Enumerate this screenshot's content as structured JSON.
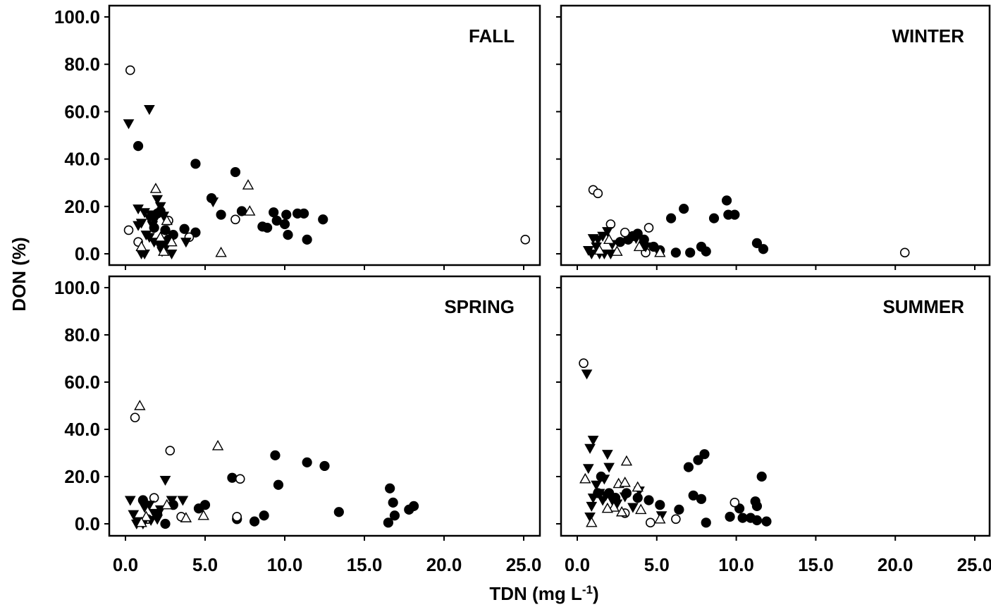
{
  "chart_data": [
    {
      "type": "scatter",
      "title": "FALL",
      "xlim": [
        0,
        25
      ],
      "ylim": [
        0,
        100
      ],
      "series": [
        {
          "marker": "filled-circle",
          "points": [
            [
              0.8,
              45.5
            ],
            [
              2.0,
              17
            ],
            [
              2.2,
              18
            ],
            [
              2.5,
              10
            ],
            [
              2.7,
              6
            ],
            [
              3.0,
              8
            ],
            [
              3.7,
              10.5
            ],
            [
              4.4,
              9
            ],
            [
              4.4,
              38
            ],
            [
              5.4,
              23.5
            ],
            [
              6.0,
              16.5
            ],
            [
              6.9,
              34.5
            ],
            [
              7.3,
              18
            ],
            [
              8.6,
              11.5
            ],
            [
              8.9,
              11
            ],
            [
              9.3,
              17.5
            ],
            [
              9.5,
              14
            ],
            [
              10.0,
              12.5
            ],
            [
              10.1,
              16.5
            ],
            [
              10.2,
              8
            ],
            [
              10.8,
              17
            ],
            [
              11.2,
              17
            ],
            [
              11.4,
              6
            ],
            [
              12.4,
              14.5
            ],
            [
              2.3,
              4
            ],
            [
              1.8,
              11
            ]
          ]
        },
        {
          "marker": "open-circle",
          "points": [
            [
              0.3,
              77.5
            ],
            [
              0.2,
              10
            ],
            [
              0.8,
              5
            ],
            [
              2.7,
              14
            ],
            [
              4.0,
              7
            ],
            [
              6.9,
              14.5
            ],
            [
              25.1,
              6
            ]
          ]
        },
        {
          "marker": "filled-triangle-down",
          "points": [
            [
              0.2,
              55
            ],
            [
              1.5,
              61
            ],
            [
              0.8,
              19
            ],
            [
              1.2,
              17.5
            ],
            [
              1.0,
              13
            ],
            [
              1.5,
              15
            ],
            [
              1.6,
              16.5
            ],
            [
              1.8,
              14
            ],
            [
              1.7,
              12
            ],
            [
              2.0,
              23
            ],
            [
              2.2,
              20
            ],
            [
              2.4,
              16
            ],
            [
              1.3,
              8
            ],
            [
              1.5,
              7
            ],
            [
              1.8,
              5
            ],
            [
              2.1,
              4
            ],
            [
              2.5,
              2.5
            ],
            [
              2.9,
              0
            ],
            [
              3.8,
              5
            ],
            [
              5.5,
              22
            ],
            [
              0.8,
              12
            ],
            [
              1.2,
              0
            ],
            [
              1.0,
              0
            ],
            [
              2.3,
              1
            ]
          ]
        },
        {
          "marker": "open-triangle-up",
          "points": [
            [
              1.9,
              27.5
            ],
            [
              7.7,
              29
            ],
            [
              7.8,
              18
            ],
            [
              6.0,
              0.5
            ],
            [
              2.6,
              14
            ],
            [
              2.2,
              7
            ],
            [
              2.9,
              5
            ],
            [
              2.4,
              1
            ],
            [
              1.0,
              3
            ]
          ]
        }
      ]
    },
    {
      "type": "scatter",
      "title": "WINTER",
      "xlim": [
        0,
        25
      ],
      "ylim": [
        0,
        100
      ],
      "series": [
        {
          "marker": "filled-circle",
          "points": [
            [
              2.7,
              5
            ],
            [
              3.2,
              6
            ],
            [
              3.5,
              7.5
            ],
            [
              3.8,
              8.5
            ],
            [
              4.2,
              6
            ],
            [
              4.8,
              3
            ],
            [
              5.2,
              1.5
            ],
            [
              5.9,
              15
            ],
            [
              6.2,
              0.5
            ],
            [
              6.7,
              19
            ],
            [
              7.1,
              0.5
            ],
            [
              7.8,
              3
            ],
            [
              8.1,
              1
            ],
            [
              8.6,
              15
            ],
            [
              9.4,
              22.5
            ],
            [
              9.5,
              16.5
            ],
            [
              9.9,
              16.5
            ],
            [
              11.3,
              4.5
            ],
            [
              11.7,
              2
            ]
          ]
        },
        {
          "marker": "open-circle",
          "points": [
            [
              1.0,
              27
            ],
            [
              1.3,
              25.5
            ],
            [
              2.1,
              12.5
            ],
            [
              3.0,
              9
            ],
            [
              4.3,
              0.5
            ],
            [
              4.5,
              11
            ],
            [
              20.6,
              0.5
            ]
          ]
        },
        {
          "marker": "filled-triangle-down",
          "points": [
            [
              1.0,
              6.5
            ],
            [
              1.3,
              6
            ],
            [
              1.6,
              7.5
            ],
            [
              1.9,
              9.5
            ],
            [
              1.2,
              3
            ],
            [
              0.7,
              1.5
            ],
            [
              0.9,
              0
            ],
            [
              1.4,
              0
            ],
            [
              1.7,
              0
            ],
            [
              2.1,
              0
            ],
            [
              2.2,
              4
            ],
            [
              3.7,
              6.5
            ],
            [
              4.3,
              3
            ]
          ]
        },
        {
          "marker": "open-triangle-up",
          "points": [
            [
              2.0,
              6
            ],
            [
              2.5,
              1
            ],
            [
              3.9,
              3
            ],
            [
              5.2,
              0.5
            ],
            [
              1.4,
              1.5
            ]
          ]
        }
      ]
    },
    {
      "type": "scatter",
      "title": "SPRING",
      "xlim": [
        0,
        25
      ],
      "ylim": [
        0,
        100
      ],
      "series": [
        {
          "marker": "filled-circle",
          "points": [
            [
              1.1,
              10
            ],
            [
              2.5,
              0
            ],
            [
              3.0,
              8
            ],
            [
              4.6,
              6.5
            ],
            [
              5.0,
              8
            ],
            [
              6.7,
              19.5
            ],
            [
              7.0,
              2
            ],
            [
              8.1,
              1
            ],
            [
              8.7,
              3.5
            ],
            [
              9.4,
              29
            ],
            [
              9.6,
              16.5
            ],
            [
              11.4,
              26
            ],
            [
              12.5,
              24.5
            ],
            [
              13.4,
              5
            ],
            [
              16.5,
              0.5
            ],
            [
              16.6,
              15
            ],
            [
              16.8,
              9
            ],
            [
              16.9,
              3.5
            ],
            [
              17.8,
              6
            ],
            [
              18.1,
              7.5
            ],
            [
              2.0,
              4
            ]
          ]
        },
        {
          "marker": "open-circle",
          "points": [
            [
              0.6,
              45
            ],
            [
              2.8,
              31
            ],
            [
              1.8,
              11
            ],
            [
              7.2,
              19
            ],
            [
              7.0,
              3
            ],
            [
              3.5,
              3
            ],
            [
              1.4,
              2
            ]
          ]
        },
        {
          "marker": "filled-triangle-down",
          "points": [
            [
              0.3,
              10
            ],
            [
              0.5,
              4
            ],
            [
              0.8,
              1
            ],
            [
              1.2,
              7
            ],
            [
              1.5,
              8
            ],
            [
              1.8,
              4.5
            ],
            [
              2.2,
              6
            ],
            [
              2.5,
              18.5
            ],
            [
              3.6,
              10
            ],
            [
              2.9,
              10
            ],
            [
              1.1,
              0
            ],
            [
              2.0,
              2
            ],
            [
              0.7,
              0
            ],
            [
              1.6,
              1.5
            ]
          ]
        },
        {
          "marker": "open-triangle-up",
          "points": [
            [
              0.9,
              50
            ],
            [
              5.8,
              33
            ],
            [
              4.9,
              3.5
            ],
            [
              3.8,
              2.5
            ],
            [
              2.6,
              8
            ],
            [
              1.3,
              3
            ],
            [
              1.0,
              0.5
            ]
          ]
        }
      ]
    },
    {
      "type": "scatter",
      "title": "SUMMER",
      "xlim": [
        0,
        25
      ],
      "ylim": [
        0,
        100
      ],
      "series": [
        {
          "marker": "filled-circle",
          "points": [
            [
              1.3,
              13
            ],
            [
              1.5,
              20
            ],
            [
              2.0,
              13
            ],
            [
              2.4,
              11
            ],
            [
              3.1,
              13
            ],
            [
              3.8,
              11
            ],
            [
              4.5,
              10
            ],
            [
              5.2,
              8
            ],
            [
              6.4,
              6
            ],
            [
              7.0,
              24
            ],
            [
              7.3,
              12
            ],
            [
              7.6,
              27
            ],
            [
              7.8,
              10.5
            ],
            [
              8.0,
              29.5
            ],
            [
              8.1,
              0.5
            ],
            [
              9.6,
              3
            ],
            [
              10.2,
              6.5
            ],
            [
              10.4,
              2.5
            ],
            [
              10.9,
              2.5
            ],
            [
              11.2,
              9.5
            ],
            [
              11.3,
              1.5
            ],
            [
              11.3,
              7.5
            ],
            [
              11.6,
              20
            ],
            [
              11.9,
              1
            ]
          ]
        },
        {
          "marker": "open-circle",
          "points": [
            [
              0.4,
              68
            ],
            [
              3.0,
              4.5
            ],
            [
              4.6,
              0.5
            ],
            [
              6.2,
              2
            ],
            [
              9.9,
              9
            ]
          ]
        },
        {
          "marker": "filled-triangle-down",
          "points": [
            [
              0.6,
              63.5
            ],
            [
              1.0,
              35.5
            ],
            [
              0.8,
              32
            ],
            [
              0.7,
              23.5
            ],
            [
              1.9,
              29.5
            ],
            [
              2.0,
              24
            ],
            [
              1.7,
              19
            ],
            [
              1.2,
              16.5
            ],
            [
              1.4,
              13
            ],
            [
              1.8,
              12
            ],
            [
              1.0,
              11
            ],
            [
              0.9,
              7.5
            ],
            [
              0.8,
              3
            ],
            [
              2.2,
              10
            ],
            [
              2.5,
              8.5
            ],
            [
              3.0,
              11.5
            ],
            [
              3.5,
              7
            ],
            [
              3.9,
              14
            ],
            [
              5.3,
              3.5
            ],
            [
              1.6,
              10
            ]
          ]
        },
        {
          "marker": "open-triangle-up",
          "points": [
            [
              0.5,
              19
            ],
            [
              3.1,
              26.5
            ],
            [
              2.6,
              17
            ],
            [
              3.0,
              17.5
            ],
            [
              3.8,
              15.5
            ],
            [
              2.3,
              7
            ],
            [
              1.9,
              6.5
            ],
            [
              2.8,
              5
            ],
            [
              4.0,
              6
            ],
            [
              0.9,
              0.5
            ],
            [
              5.2,
              2
            ]
          ]
        }
      ]
    }
  ],
  "axes": {
    "x_tick_labels": [
      "0.0",
      "5.0",
      "10.0",
      "15.0",
      "20.0",
      "25.0"
    ],
    "y_tick_labels": [
      "0.0",
      "20.0",
      "40.0",
      "60.0",
      "80.0",
      "100.0"
    ],
    "x_title": "TDN (mg L",
    "x_title_superscript": "-1",
    "x_title_close": ")",
    "y_title": "DON (%)"
  }
}
